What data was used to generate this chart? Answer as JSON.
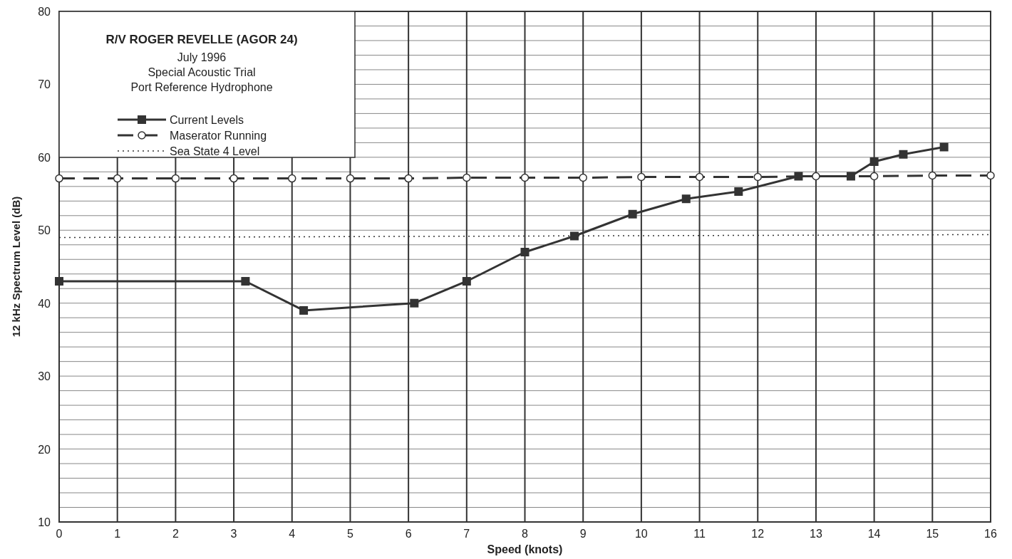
{
  "chart_data": {
    "type": "line",
    "title": "R/V ROGER REVELLE (AGOR 24)",
    "subtitle": "July 1996\nSpecial Acoustic Trial\nPort Reference Hydrophone",
    "xlabel": "Speed (knots)",
    "ylabel": "12 kHz Spectrum Level (dB)",
    "xlim": [
      0,
      16
    ],
    "xticks": [
      0,
      1,
      2,
      3,
      4,
      5,
      6,
      7,
      8,
      9,
      10,
      11,
      12,
      13,
      14,
      15,
      16
    ],
    "ylim": [
      10,
      80
    ],
    "yticks": [
      10,
      {
        "value": 12,
        "label": null
      },
      {
        "value": 14,
        "label": null
      },
      {
        "value": 16,
        "label": null
      },
      {
        "value": 18,
        "label": null
      },
      20,
      {
        "value": 22,
        "label": null
      },
      {
        "value": 24,
        "label": null
      },
      {
        "value": 26,
        "label": null
      },
      {
        "value": 28,
        "label": null
      },
      30,
      {
        "value": 32,
        "label": null
      },
      {
        "value": 34,
        "label": null
      },
      {
        "value": 36,
        "label": null
      },
      {
        "value": 38,
        "label": null
      },
      40,
      {
        "value": 42,
        "label": null
      },
      {
        "value": 44,
        "label": null
      },
      {
        "value": 46,
        "label": null
      },
      {
        "value": 48,
        "label": null
      },
      50,
      {
        "value": 52,
        "label": null
      },
      {
        "value": 54,
        "label": null
      },
      {
        "value": 56,
        "label": null
      },
      {
        "value": 58,
        "label": null
      },
      60,
      {
        "value": 62,
        "label": null
      },
      {
        "value": 64,
        "label": null
      },
      {
        "value": 66,
        "label": null
      },
      {
        "value": 68,
        "label": null
      },
      70,
      {
        "value": 72,
        "label": null
      },
      {
        "value": 74,
        "label": null
      },
      {
        "value": 76,
        "label": null
      },
      {
        "value": 78,
        "label": null
      },
      80
    ],
    "grid": true,
    "legend": "top left",
    "series": [
      {
        "name": "Current Levels",
        "color": "#333333",
        "marker": "square",
        "line_style": "solid",
        "x": [
          0,
          3.2,
          4.2,
          6.1,
          7,
          8,
          8.85,
          9.85,
          10.77,
          11.67,
          12.7,
          13.6,
          14,
          14.5,
          15.2
        ],
        "values": [
          43,
          43,
          39,
          40,
          43,
          47,
          49.2,
          52.2,
          54.3,
          55.3,
          57.4,
          57.4,
          59.4,
          60.4,
          61.4
        ]
      },
      {
        "name": "Maserator Running",
        "color": "#333333",
        "marker": "circle",
        "line_style": "dashed",
        "x": [
          0,
          1,
          2,
          3,
          4,
          5,
          6,
          7,
          8,
          9,
          10,
          11,
          12,
          13,
          14,
          15,
          16
        ],
        "values": [
          57.1,
          57.1,
          57.1,
          57.1,
          57.1,
          57.1,
          57.1,
          57.2,
          57.2,
          57.2,
          57.3,
          57.3,
          57.3,
          57.4,
          57.4,
          57.5,
          57.5
        ]
      },
      {
        "name": "Sea State 4 Level",
        "color": "#333333",
        "marker": "none",
        "line_style": "dotted",
        "x": [
          0,
          16
        ],
        "values": [
          49,
          49.4
        ]
      }
    ]
  }
}
